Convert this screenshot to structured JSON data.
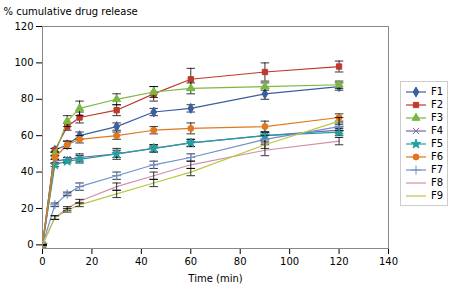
{
  "chart_data": {
    "type": "line",
    "xlabel": "Time (min)",
    "ylabel": "% cumulative drug release",
    "x": [
      0,
      5,
      10,
      15,
      30,
      45,
      60,
      90,
      120
    ],
    "xlim": [
      0,
      140
    ],
    "xticks": [
      0,
      20,
      40,
      60,
      80,
      100,
      120,
      140
    ],
    "ylim": [
      -2,
      120
    ],
    "yticks": [
      0,
      20,
      40,
      60,
      80,
      100,
      120
    ],
    "legend": "right",
    "series": [
      {
        "name": "F1",
        "color": "#3a5fa0",
        "marker": "diamond",
        "values": [
          0,
          52,
          55,
          60,
          65,
          73,
          75,
          83,
          87
        ],
        "errors": [
          0,
          1,
          2,
          2,
          2,
          2,
          2,
          3,
          2
        ]
      },
      {
        "name": "F2",
        "color": "#c0392b",
        "marker": "square",
        "values": [
          0,
          52,
          65,
          70,
          74,
          83,
          91,
          95,
          98
        ],
        "errors": [
          0,
          1,
          2,
          3,
          3,
          4,
          6,
          5,
          3
        ]
      },
      {
        "name": "F3",
        "color": "#7ab840",
        "marker": "triangle",
        "values": [
          0,
          50,
          68,
          75,
          80,
          84,
          86,
          87,
          88
        ],
        "errors": [
          0,
          1,
          3,
          4,
          3,
          3,
          3,
          2,
          2
        ]
      },
      {
        "name": "F4",
        "color": "#8060a8",
        "marker": "times",
        "values": [
          0,
          46,
          47,
          48,
          50,
          53,
          56,
          60,
          63
        ],
        "errors": [
          0,
          1,
          1,
          2,
          3,
          2,
          2,
          2,
          2
        ]
      },
      {
        "name": "F5",
        "color": "#20a0a0",
        "marker": "star",
        "values": [
          0,
          44,
          46,
          47,
          50,
          53,
          56,
          60,
          62
        ],
        "errors": [
          0,
          1,
          1,
          2,
          2,
          2,
          2,
          2,
          2
        ]
      },
      {
        "name": "F6",
        "color": "#e07820",
        "marker": "circle",
        "values": [
          0,
          48,
          55,
          58,
          60,
          63,
          64,
          65,
          70
        ],
        "errors": [
          0,
          1,
          2,
          2,
          2,
          2,
          3,
          3,
          2
        ]
      },
      {
        "name": "F7",
        "color": "#7090c8",
        "marker": "plus",
        "values": [
          0,
          22,
          28,
          32,
          38,
          44,
          48,
          58,
          65
        ],
        "errors": [
          0,
          1,
          1,
          2,
          2,
          2,
          2,
          2,
          2
        ]
      },
      {
        "name": "F8",
        "color": "#d090a8",
        "marker": "none",
        "values": [
          0,
          15,
          20,
          24,
          32,
          38,
          44,
          52,
          57
        ],
        "errors": [
          0,
          1,
          1,
          1,
          2,
          2,
          2,
          3,
          2
        ]
      },
      {
        "name": "F9",
        "color": "#b8c840",
        "marker": "none",
        "values": [
          0,
          15,
          19,
          22,
          28,
          34,
          40,
          55,
          68
        ],
        "errors": [
          0,
          1,
          1,
          1,
          2,
          2,
          2,
          2,
          2
        ]
      }
    ]
  }
}
